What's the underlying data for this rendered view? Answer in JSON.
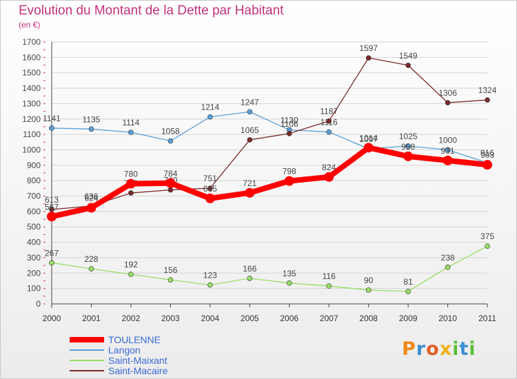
{
  "title": "Evolution du Montant de la Dette par Habitant",
  "subtitle": "(en €)",
  "logo_text": "Proxiti",
  "chart_data": {
    "type": "line",
    "x": [
      "2000",
      "2001",
      "2002",
      "2003",
      "2004",
      "2005",
      "2006",
      "2007",
      "2008",
      "2009",
      "2010",
      "2011"
    ],
    "ylim": [
      0,
      1700
    ],
    "yticks": [
      0,
      100,
      200,
      300,
      400,
      500,
      600,
      700,
      800,
      900,
      1000,
      1100,
      1200,
      1300,
      1400,
      1500,
      1600,
      1700
    ],
    "grid": true,
    "legend_position": "bottom-left",
    "series": [
      {
        "name": "TOULENNE",
        "color": "#ff0000",
        "values": [
          567,
          624,
          780,
          784,
          685,
          721,
          798,
          824,
          1014,
          958,
          931,
          903
        ]
      },
      {
        "name": "Langon",
        "color": "#5a9fd8",
        "values": [
          1141,
          1135,
          1114,
          1058,
          1214,
          1247,
          1130,
          1116,
          1007,
          1025,
          1000,
          916
        ]
      },
      {
        "name": "Saint-Maixant",
        "color": "#99dd66",
        "values": [
          267,
          228,
          192,
          156,
          123,
          166,
          135,
          116,
          90,
          81,
          238,
          375
        ]
      },
      {
        "name": "Saint-Macaire",
        "color": "#7a2a2a",
        "values": [
          613,
          636,
          720,
          740,
          751,
          1065,
          1106,
          1187,
          1597,
          1549,
          1306,
          1324
        ]
      }
    ]
  }
}
